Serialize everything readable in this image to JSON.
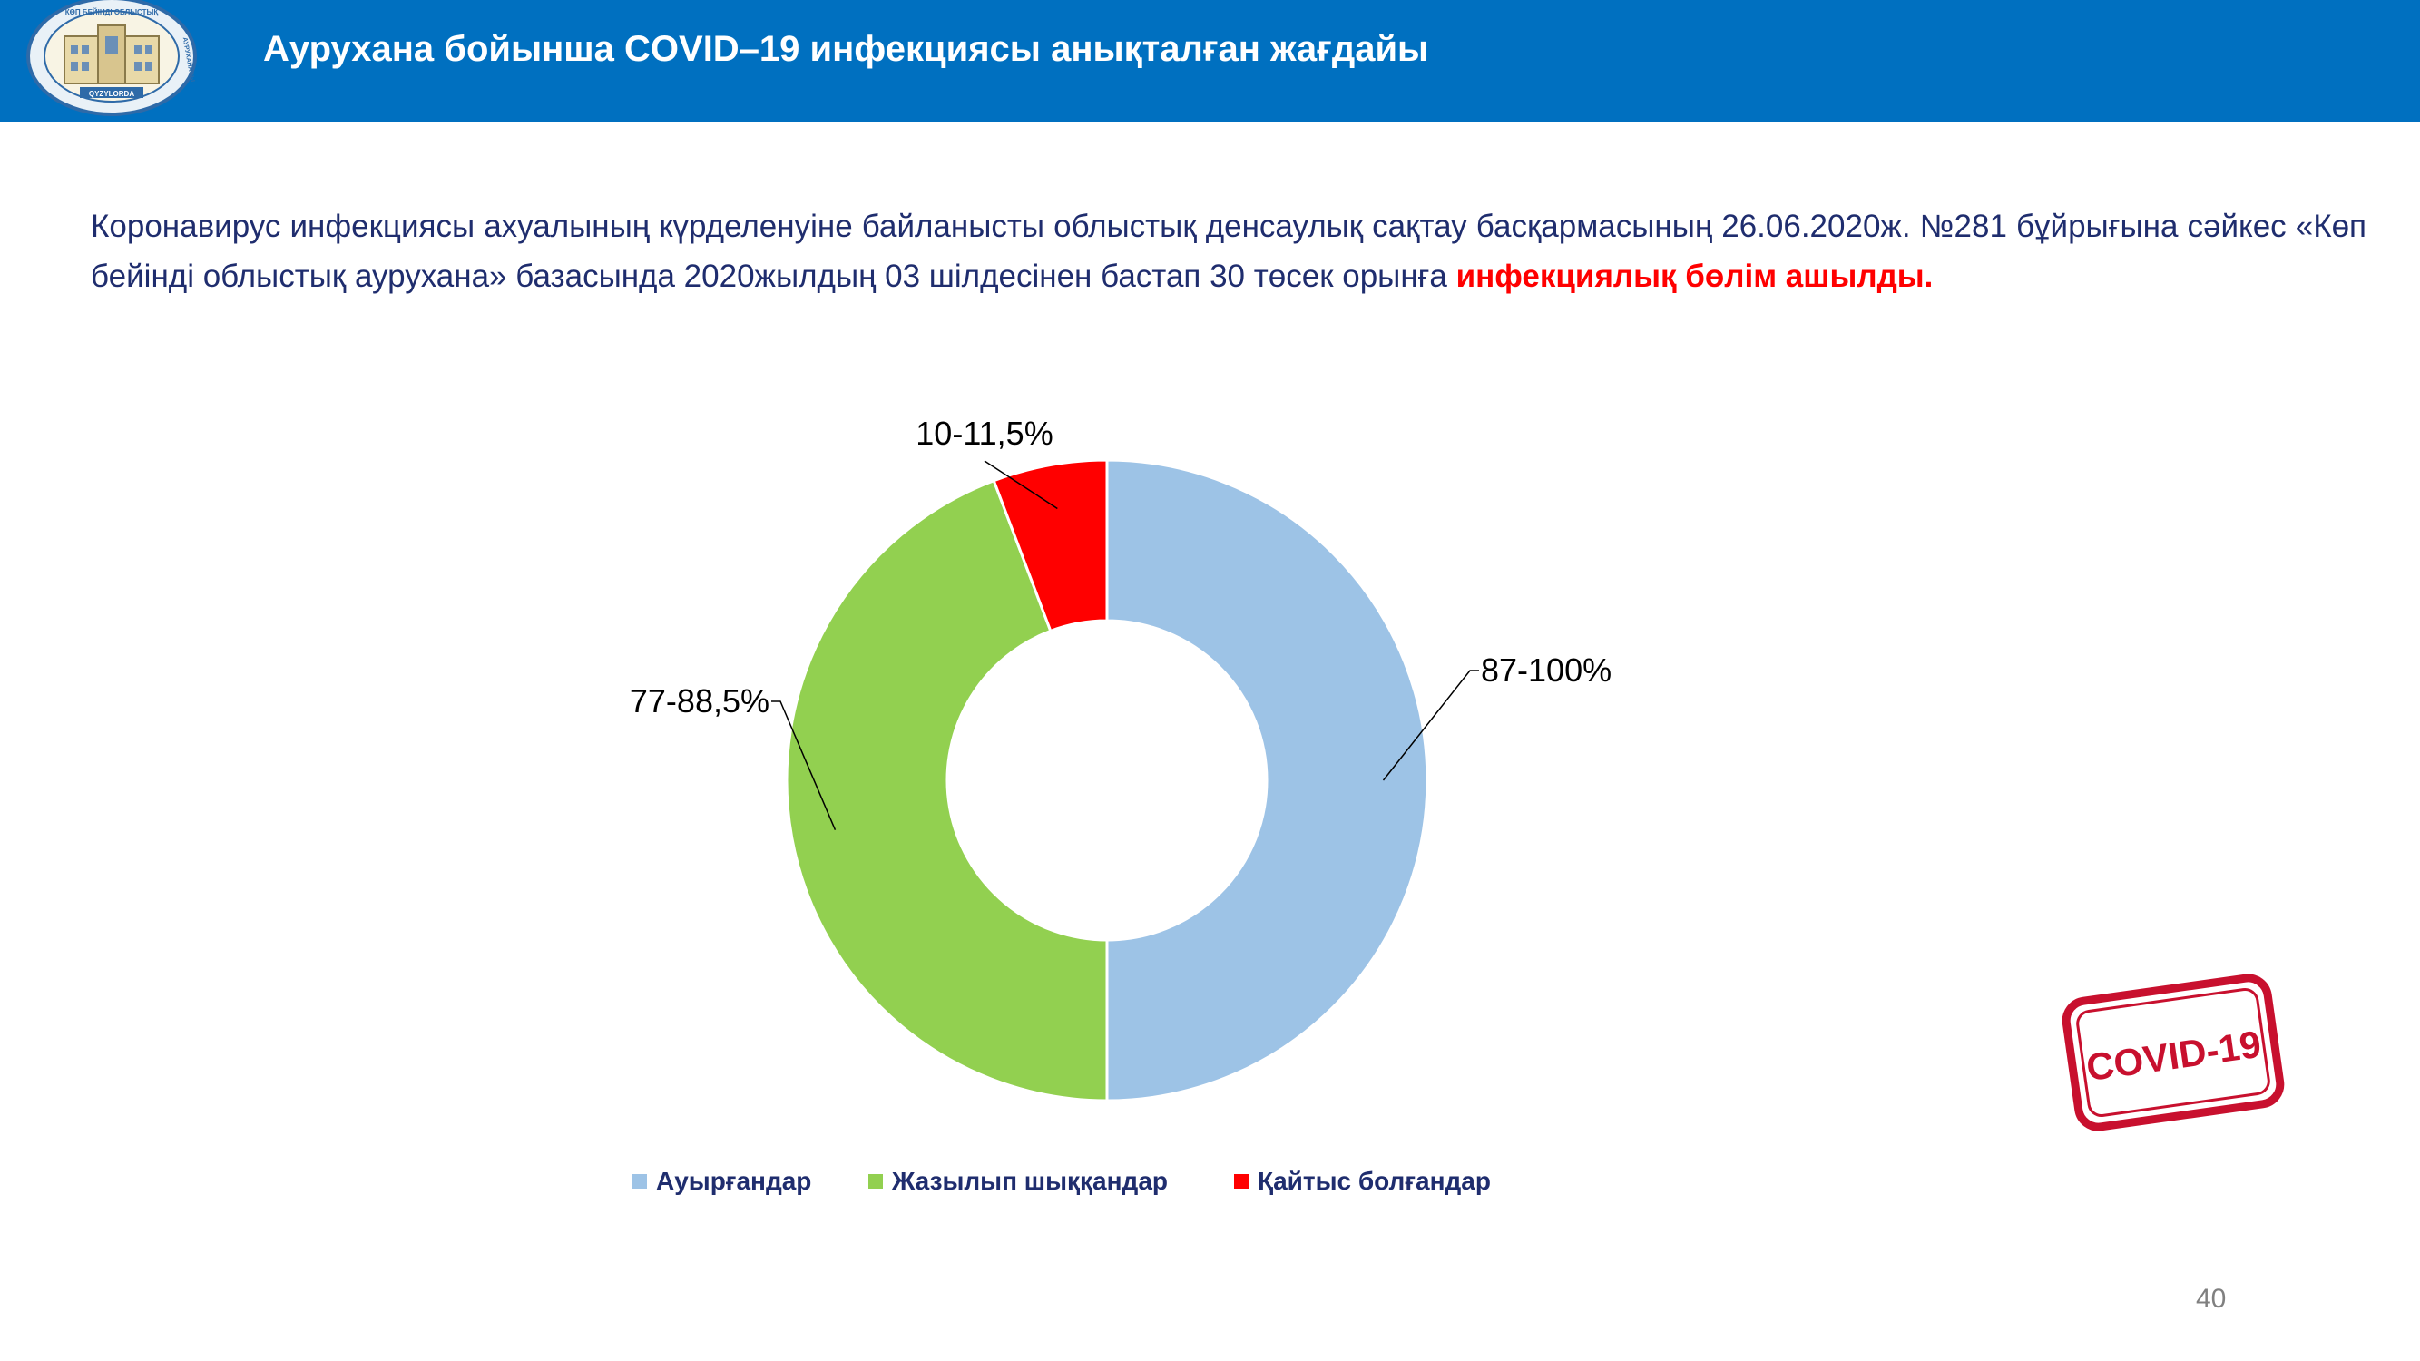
{
  "header": {
    "title": "Аурухана бойынша COVID–19 инфекциясы анықталған жағдайы",
    "logo_text_top": "КӨП БЕЙІНДІ ОБЛЫСТЫҚ",
    "logo_text_bottom": "QYZYLORDA",
    "logo_text_right": "АУРУХАНАСЫ"
  },
  "intro": {
    "text": "Коронавирус инфекциясы ахуалының күрделенуіне байланысты облыстық денсаулық сақтау басқармасының 26.06.2020ж. №281 бұйрығына сәйкес «Көп бейінді облыстық аурухана» базасында 2020жылдың 03 шілдесінен бастап  30 төсек орынға ",
    "highlight": "инфекциялық бөлім ашылды."
  },
  "chart_data": {
    "type": "pie",
    "donut": true,
    "series": [
      {
        "name": "Ауырғандар",
        "value": 87,
        "label": "87-100%",
        "color": "#9dc3e6"
      },
      {
        "name": "Жазылып шыққандар",
        "value": 77,
        "label": "77-88,5%",
        "color": "#92d050"
      },
      {
        "name": "Қайтыс болғандар",
        "value": 10,
        "label": "10-11,5%",
        "color": "#ff0000"
      }
    ],
    "legend_position": "bottom"
  },
  "stamp": {
    "text": "COVID-19",
    "color": "#c8102e"
  },
  "page_number": "40"
}
